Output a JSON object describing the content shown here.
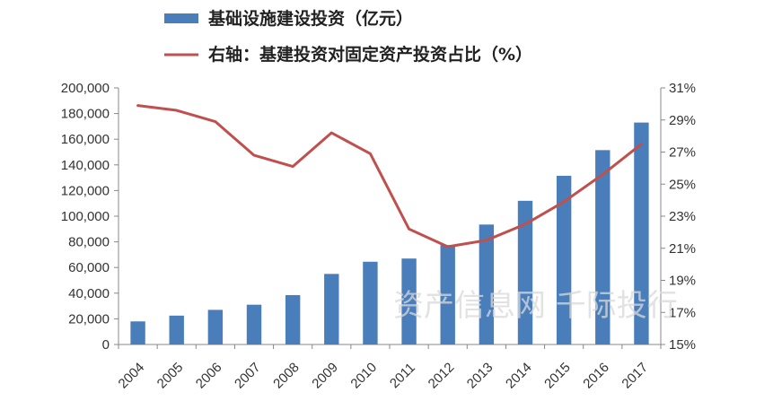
{
  "chart_data": {
    "type": "bar+line",
    "categories": [
      "2004",
      "2005",
      "2006",
      "2007",
      "2008",
      "2009",
      "2010",
      "2011",
      "2012",
      "2013",
      "2014",
      "2015",
      "2016",
      "2017"
    ],
    "series": [
      {
        "name": "基础设施建设投资（亿元）",
        "type": "bar",
        "axis": "left",
        "color": "#4a7ebb",
        "values": [
          18000,
          22500,
          27000,
          31000,
          38500,
          55000,
          64500,
          67000,
          77500,
          93500,
          112000,
          131500,
          151500,
          173000
        ]
      },
      {
        "name": "右轴：基建投资对固定资产投资占比（%）",
        "type": "line",
        "axis": "right",
        "color": "#c0504d",
        "values": [
          29.9,
          29.6,
          28.9,
          26.8,
          26.1,
          28.2,
          26.9,
          22.2,
          21.1,
          21.5,
          22.5,
          23.9,
          25.6,
          27.5
        ]
      }
    ],
    "yleft": {
      "min": 0,
      "max": 200000,
      "ticks": [
        "0",
        "20,000",
        "40,000",
        "60,000",
        "80,000",
        "100,000",
        "120,000",
        "140,000",
        "160,000",
        "180,000",
        "200,000"
      ]
    },
    "yright": {
      "min": 15,
      "max": 31,
      "ticks": [
        "15%",
        "17%",
        "19%",
        "21%",
        "23%",
        "25%",
        "27%",
        "29%",
        "31%"
      ]
    },
    "legend_position": "top-left",
    "grid": false
  },
  "watermark": "资产信息网 千际投行"
}
